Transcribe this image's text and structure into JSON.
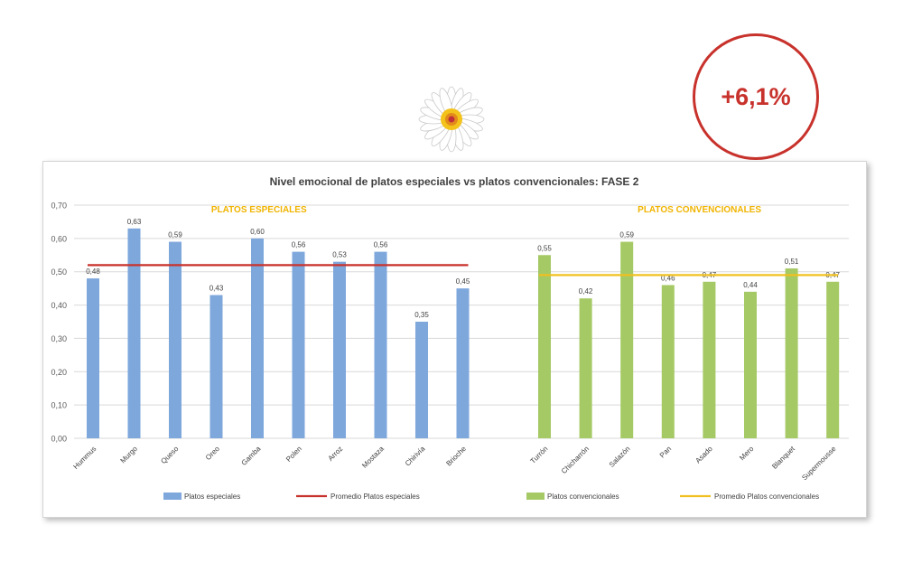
{
  "badge": {
    "text": "+6,1%",
    "color": "#c8322c"
  },
  "chart_data": {
    "type": "bar",
    "title": "Nivel emocional de platos especiales vs platos convencionales: FASE 2",
    "ylim": [
      0,
      0.7
    ],
    "yticks": [
      "0,00",
      "0,10",
      "0,20",
      "0,30",
      "0,40",
      "0,50",
      "0,60",
      "0,70"
    ],
    "grid": true,
    "legend_position": "bottom",
    "groups": [
      {
        "label": "PLATOS ESPECIALES",
        "label_color": "#f0b400",
        "series_name": "Platos especiales",
        "bar_color": "#7ea7dc",
        "categories": [
          "Hummus",
          "Murgo",
          "Queso",
          "Oreo",
          "Gamba",
          "Polen",
          "Arroz",
          "Mostaza",
          "Chirivía",
          "Brioche"
        ],
        "values": [
          0.48,
          0.63,
          0.59,
          0.43,
          0.6,
          0.56,
          0.53,
          0.56,
          0.35,
          0.45
        ],
        "value_labels": [
          "0,48",
          "0,63",
          "0,59",
          "0,43",
          "0,60",
          "0,56",
          "0,53",
          "0,56",
          "0,35",
          "0,45"
        ],
        "average_name": "Promedio Platos especiales",
        "average_value": 0.52,
        "average_color": "#c8322c"
      },
      {
        "label": "PLATOS CONVENCIONALES",
        "label_color": "#f0b400",
        "series_name": "Platos convencionales",
        "bar_color": "#a5c964",
        "categories": [
          "Turrón",
          "Chicharrón",
          "Salazón",
          "Pan",
          "Asado",
          "Mero",
          "Blanquet",
          "Supermousse"
        ],
        "values": [
          0.55,
          0.42,
          0.59,
          0.46,
          0.47,
          0.44,
          0.51,
          0.47
        ],
        "value_labels": [
          "0,55",
          "0,42",
          "0,59",
          "0,46",
          "0,47",
          "0,44",
          "0,51",
          "0,47"
        ],
        "average_name": "Promedio Platos convencionales",
        "average_value": 0.49,
        "average_color": "#f0c020"
      }
    ]
  }
}
